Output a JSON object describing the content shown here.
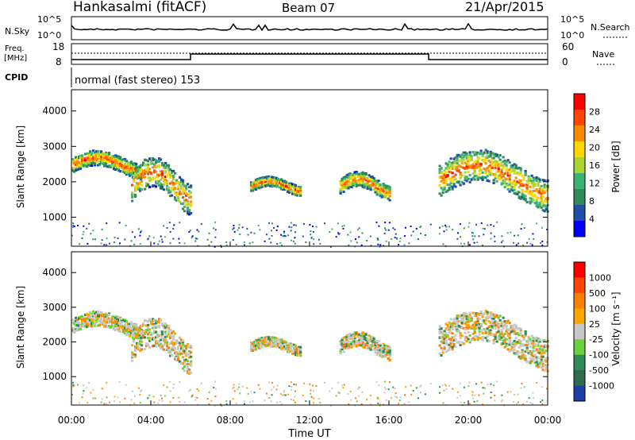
{
  "header": {
    "title": "Hankasalmi (fitACF)",
    "beam": "Beam 07",
    "date": "21/Apr/2015"
  },
  "status_panels": {
    "nsky_label": "N.Sky",
    "nsky_ticks": [
      "10^5",
      "10^0"
    ],
    "nsearch_label": "N.Search",
    "nsearch_ticks": [
      "10^5",
      "10^0"
    ],
    "freq_label_1": "Freq.",
    "freq_label_2": "[MHz]",
    "freq_ticks": [
      "18",
      "8"
    ],
    "nave_label": "Nave",
    "nave_ticks": [
      "60",
      "0"
    ],
    "cpid_label": "CPID",
    "cpid_text": "normal (fast stereo) 153"
  },
  "chart_data": [
    {
      "type": "heatmap",
      "name": "power",
      "ylabel": "Slant Range [km]",
      "ylim": [
        180,
        4600
      ],
      "yticks": [
        "4000",
        "3000",
        "2000",
        "1000"
      ],
      "colorbar_label": "Power [dB]",
      "colorbar_ticks": [
        "28",
        "24",
        "20",
        "16",
        "12",
        "8",
        "4"
      ],
      "colors": [
        "#0000ff",
        "#1f4ea8",
        "#2e8b57",
        "#3cb371",
        "#a8d530",
        "#ffd700",
        "#ff8c00",
        "#ff4500",
        "#ff0000"
      ],
      "echo_bands": [
        {
          "t0": 0.0,
          "t1": 3.5,
          "r0": 2200,
          "r1": 2800
        },
        {
          "t0": 3.0,
          "t1": 6.0,
          "r0": 1300,
          "r1": 2500
        },
        {
          "t0": 9.0,
          "t1": 11.5,
          "r0": 1700,
          "r1": 2100
        },
        {
          "t0": 13.5,
          "t1": 16.0,
          "r0": 1600,
          "r1": 2200
        },
        {
          "t0": 18.5,
          "t1": 24.0,
          "r0": 1400,
          "r1": 2700
        }
      ]
    },
    {
      "type": "heatmap",
      "name": "velocity",
      "ylabel": "Slant Range [km]",
      "ylim": [
        180,
        4600
      ],
      "yticks": [
        "4000",
        "3000",
        "2000",
        "1000"
      ],
      "xticks": [
        "00:00",
        "04:00",
        "08:00",
        "12:00",
        "16:00",
        "20:00",
        "00:00"
      ],
      "xlabel": "Time UT",
      "colorbar_label": "Velocity [m s⁻¹]",
      "colorbar_ticks": [
        "1000",
        "500",
        "100",
        "25",
        "-25",
        "-100",
        "-500",
        "-1000"
      ],
      "colors": [
        "#1f3fa8",
        "#2e6b4f",
        "#2e8b57",
        "#6ad23f",
        "#c8c8c8",
        "#ffa500",
        "#ff7f00",
        "#ff4500",
        "#ff0000"
      ]
    }
  ]
}
